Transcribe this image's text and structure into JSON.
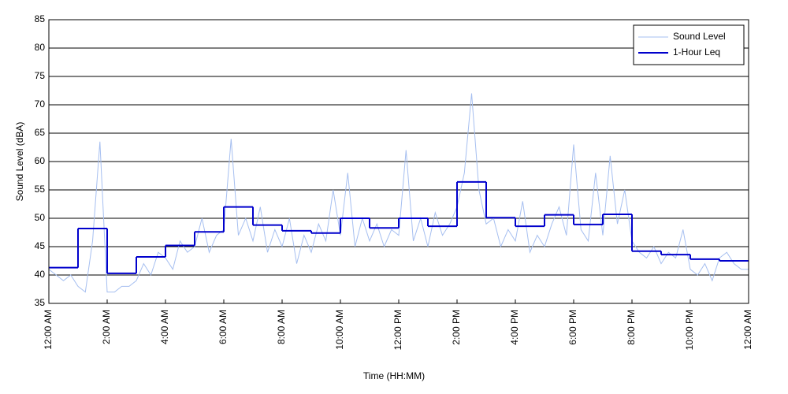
{
  "chart_data": {
    "type": "line",
    "xlabel": "Time (HH:MM)",
    "ylabel": "Sound Level (dBA)",
    "xlim": [
      0,
      24
    ],
    "ylim": [
      35,
      85
    ],
    "xticks": [
      {
        "value": 0,
        "label": "12:00 AM"
      },
      {
        "value": 2,
        "label": "2:00 AM"
      },
      {
        "value": 4,
        "label": "4:00 AM"
      },
      {
        "value": 6,
        "label": "6:00 AM"
      },
      {
        "value": 8,
        "label": "8:00 AM"
      },
      {
        "value": 10,
        "label": "10:00 AM"
      },
      {
        "value": 12,
        "label": "12:00 PM"
      },
      {
        "value": 14,
        "label": "2:00 PM"
      },
      {
        "value": 16,
        "label": "4:00 PM"
      },
      {
        "value": 18,
        "label": "6:00 PM"
      },
      {
        "value": 20,
        "label": "8:00 PM"
      },
      {
        "value": 22,
        "label": "10:00 PM"
      },
      {
        "value": 24,
        "label": "12:00 AM"
      }
    ],
    "yticks": [
      35,
      40,
      45,
      50,
      55,
      60,
      65,
      70,
      75,
      80,
      85
    ],
    "grid": true,
    "legend": "upper right",
    "series": [
      {
        "name": "Sound Level",
        "color": "#a6bff0",
        "style": "line",
        "x": [
          0,
          0.25,
          0.5,
          0.75,
          1,
          1.25,
          1.5,
          1.75,
          2,
          2.25,
          2.5,
          2.75,
          3,
          3.25,
          3.5,
          3.75,
          4,
          4.25,
          4.5,
          4.75,
          5,
          5.25,
          5.5,
          5.75,
          6,
          6.25,
          6.5,
          6.75,
          7,
          7.25,
          7.5,
          7.75,
          8,
          8.25,
          8.5,
          8.75,
          9,
          9.25,
          9.5,
          9.75,
          10,
          10.25,
          10.5,
          10.75,
          11,
          11.25,
          11.5,
          11.75,
          12,
          12.25,
          12.5,
          12.75,
          13,
          13.25,
          13.5,
          13.75,
          14,
          14.25,
          14.5,
          14.75,
          15,
          15.25,
          15.5,
          15.75,
          16,
          16.25,
          16.5,
          16.75,
          17,
          17.25,
          17.5,
          17.75,
          18,
          18.25,
          18.5,
          18.75,
          19,
          19.25,
          19.5,
          19.75,
          20,
          20.25,
          20.5,
          20.75,
          21,
          21.25,
          21.5,
          21.75,
          22,
          22.25,
          22.5,
          22.75,
          23,
          23.25,
          23.5,
          23.75,
          24
        ],
        "values": [
          41,
          40,
          39,
          40,
          38,
          37,
          46,
          63.5,
          37,
          37,
          38,
          38,
          39,
          42,
          40,
          44,
          43,
          41,
          46,
          44,
          45,
          50,
          44,
          47,
          48,
          64,
          47,
          50,
          46,
          52,
          44,
          48,
          45,
          50,
          42,
          47,
          44,
          49,
          46,
          55,
          47,
          58,
          45,
          50,
          46,
          49,
          45,
          48,
          47,
          62,
          46,
          50,
          45,
          51,
          47,
          49,
          52,
          58,
          72,
          55,
          49,
          50,
          45,
          48,
          46,
          53,
          44,
          47,
          45,
          49,
          52,
          47,
          63,
          48,
          46,
          58,
          47,
          61,
          49,
          55,
          46,
          44,
          43,
          45,
          42,
          44,
          43,
          48,
          41,
          40,
          42,
          39,
          43,
          44,
          42,
          41,
          41
        ]
      },
      {
        "name": "1-Hour Leq",
        "color": "#0000cc",
        "style": "step",
        "x": [
          0,
          1,
          2,
          3,
          4,
          5,
          6,
          7,
          8,
          9,
          10,
          11,
          12,
          13,
          14,
          15,
          16,
          17,
          18,
          19,
          20,
          21,
          22,
          23
        ],
        "values": [
          41.3,
          48.2,
          40.3,
          43.2,
          45.2,
          47.6,
          52,
          48.8,
          47.8,
          47.4,
          50,
          48.3,
          50,
          48.6,
          56.4,
          50.1,
          48.6,
          50.6,
          48.9,
          50.7,
          44.2,
          43.6,
          42.8,
          42.5
        ]
      }
    ]
  }
}
